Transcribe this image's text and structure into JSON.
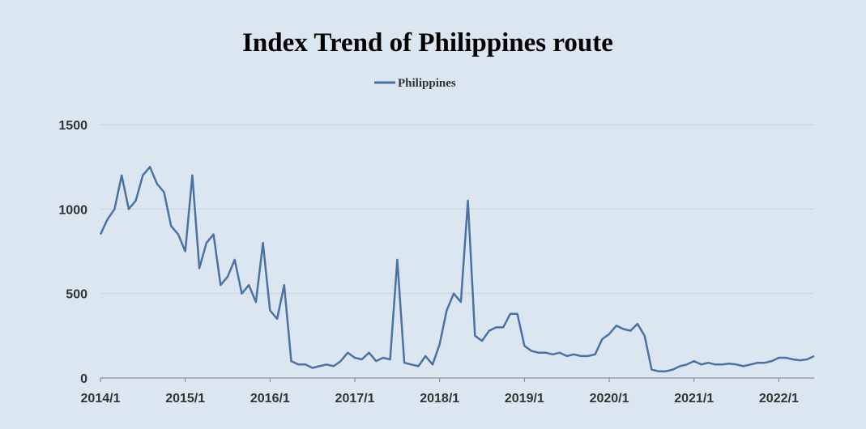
{
  "chart_data": {
    "type": "line",
    "title": "Index Trend of Philippines route",
    "legend_position": "top-center",
    "grid": true,
    "ylim": [
      0,
      1500
    ],
    "y_ticks": [
      "0",
      "500",
      "1000",
      "1500"
    ],
    "x_ticks": [
      "2014/1",
      "2015/1",
      "2016/1",
      "2017/1",
      "2018/1",
      "2019/1",
      "2020/1",
      "2021/1",
      "2022/1"
    ],
    "xlim": [
      "2014-01",
      "2022-06"
    ],
    "colors": {
      "series": "#4a73a3",
      "background": "#dce6f1"
    },
    "series": [
      {
        "name": "Philippines",
        "x": [
          "2014-01",
          "2014-02",
          "2014-03",
          "2014-04",
          "2014-05",
          "2014-06",
          "2014-07",
          "2014-08",
          "2014-09",
          "2014-10",
          "2014-11",
          "2014-12",
          "2015-01",
          "2015-02",
          "2015-03",
          "2015-04",
          "2015-05",
          "2015-06",
          "2015-07",
          "2015-08",
          "2015-09",
          "2015-10",
          "2015-11",
          "2015-12",
          "2016-01",
          "2016-02",
          "2016-03",
          "2016-04",
          "2016-05",
          "2016-06",
          "2016-07",
          "2016-08",
          "2016-09",
          "2016-10",
          "2016-11",
          "2016-12",
          "2017-01",
          "2017-02",
          "2017-03",
          "2017-04",
          "2017-05",
          "2017-06",
          "2017-07",
          "2017-08",
          "2017-09",
          "2017-10",
          "2017-11",
          "2017-12",
          "2018-01",
          "2018-02",
          "2018-03",
          "2018-04",
          "2018-05",
          "2018-06",
          "2018-07",
          "2018-08",
          "2018-09",
          "2018-10",
          "2018-11",
          "2018-12",
          "2019-01",
          "2019-02",
          "2019-03",
          "2019-04",
          "2019-05",
          "2019-06",
          "2019-07",
          "2019-08",
          "2019-09",
          "2019-10",
          "2019-11",
          "2019-12",
          "2020-01",
          "2020-02",
          "2020-03",
          "2020-04",
          "2020-05",
          "2020-06",
          "2020-07",
          "2020-08",
          "2020-09",
          "2020-10",
          "2020-11",
          "2020-12",
          "2021-01",
          "2021-02",
          "2021-03",
          "2021-04",
          "2021-05",
          "2021-06",
          "2021-07",
          "2021-08",
          "2021-09",
          "2021-10",
          "2021-11",
          "2021-12",
          "2022-01",
          "2022-02",
          "2022-03",
          "2022-04",
          "2022-05",
          "2022-06"
        ],
        "values": [
          850,
          940,
          1000,
          1200,
          1000,
          1050,
          1200,
          1250,
          1150,
          1100,
          900,
          850,
          750,
          1200,
          650,
          800,
          850,
          550,
          600,
          700,
          500,
          550,
          450,
          800,
          400,
          350,
          550,
          100,
          80,
          80,
          60,
          70,
          80,
          70,
          100,
          150,
          120,
          110,
          150,
          100,
          120,
          110,
          700,
          90,
          80,
          70,
          130,
          80,
          200,
          400,
          500,
          450,
          1050,
          250,
          220,
          280,
          300,
          300,
          380,
          380,
          190,
          160,
          150,
          150,
          140,
          150,
          130,
          140,
          130,
          130,
          140,
          230,
          260,
          310,
          290,
          280,
          320,
          250,
          50,
          40,
          40,
          50,
          70,
          80,
          100,
          80,
          90,
          80,
          80,
          85,
          80,
          70,
          80,
          90,
          90,
          100,
          120,
          120,
          110,
          105,
          110,
          130
        ]
      }
    ]
  }
}
